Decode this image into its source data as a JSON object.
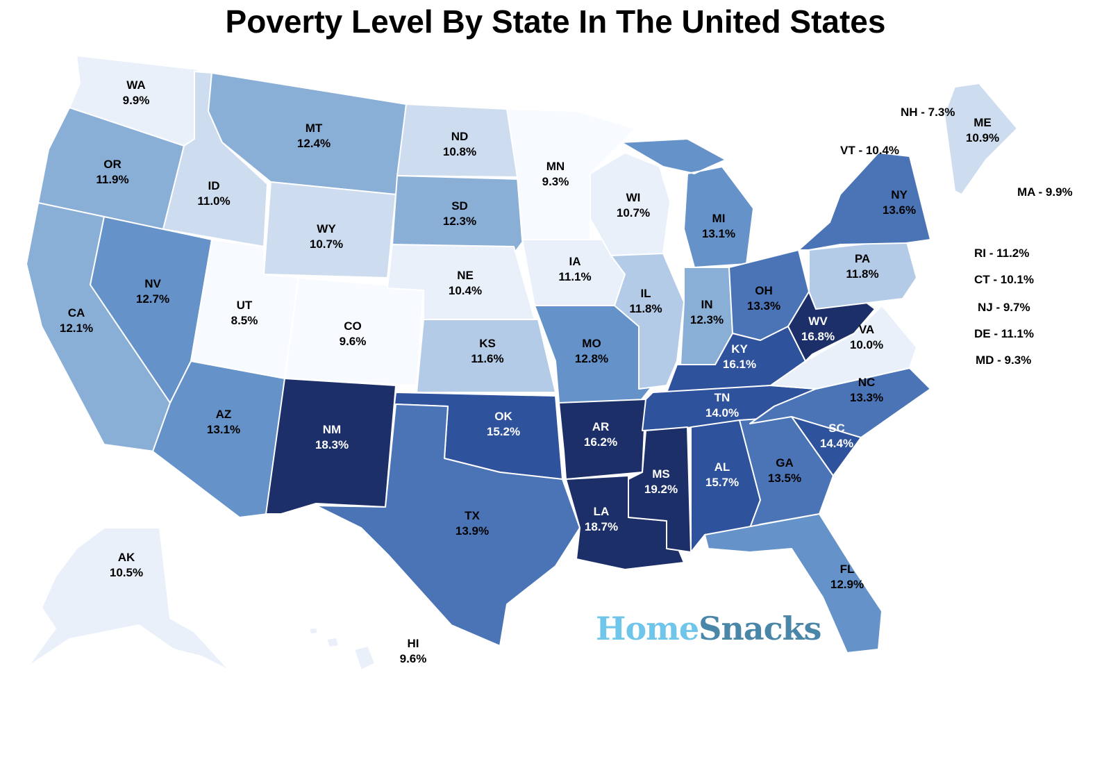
{
  "title": "Poverty Level By State In The United States",
  "brand": {
    "part1": "Home",
    "part2": "Snacks"
  },
  "colors": {
    "c1": "#f7faff",
    "c2": "#e9f0fa",
    "c3": "#cddcef",
    "c4": "#b3cbe6",
    "c5": "#8aafd7",
    "c6": "#6492c9",
    "c7": "#4a74b6",
    "c8": "#2f529c",
    "c9": "#1c2f68"
  },
  "states": [
    {
      "abbr": "WA",
      "value": "9.9%",
      "color": "c2"
    },
    {
      "abbr": "OR",
      "value": "11.9%",
      "color": "c5"
    },
    {
      "abbr": "CA",
      "value": "12.1%",
      "color": "c5"
    },
    {
      "abbr": "ID",
      "value": "11.0%",
      "color": "c3"
    },
    {
      "abbr": "NV",
      "value": "12.7%",
      "color": "c6"
    },
    {
      "abbr": "MT",
      "value": "12.4%",
      "color": "c5"
    },
    {
      "abbr": "WY",
      "value": "10.7%",
      "color": "c3"
    },
    {
      "abbr": "UT",
      "value": "8.5%",
      "color": "c1"
    },
    {
      "abbr": "CO",
      "value": "9.6%",
      "color": "c1"
    },
    {
      "abbr": "AZ",
      "value": "13.1%",
      "color": "c6"
    },
    {
      "abbr": "NM",
      "value": "18.3%",
      "color": "c9"
    },
    {
      "abbr": "ND",
      "value": "10.8%",
      "color": "c3"
    },
    {
      "abbr": "SD",
      "value": "12.3%",
      "color": "c5"
    },
    {
      "abbr": "NE",
      "value": "10.4%",
      "color": "c2"
    },
    {
      "abbr": "KS",
      "value": "11.6%",
      "color": "c4"
    },
    {
      "abbr": "OK",
      "value": "15.2%",
      "color": "c8"
    },
    {
      "abbr": "TX",
      "value": "13.9%",
      "color": "c7"
    },
    {
      "abbr": "MN",
      "value": "9.3%",
      "color": "c1"
    },
    {
      "abbr": "IA",
      "value": "11.1%",
      "color": "c2"
    },
    {
      "abbr": "MO",
      "value": "12.8%",
      "color": "c6"
    },
    {
      "abbr": "AR",
      "value": "16.2%",
      "color": "c9"
    },
    {
      "abbr": "LA",
      "value": "18.7%",
      "color": "c9"
    },
    {
      "abbr": "WI",
      "value": "10.7%",
      "color": "c2"
    },
    {
      "abbr": "IL",
      "value": "11.8%",
      "color": "c4"
    },
    {
      "abbr": "MI",
      "value": "13.1%",
      "color": "c6"
    },
    {
      "abbr": "IN",
      "value": "12.3%",
      "color": "c5"
    },
    {
      "abbr": "OH",
      "value": "13.3%",
      "color": "c7"
    },
    {
      "abbr": "KY",
      "value": "16.1%",
      "color": "c8"
    },
    {
      "abbr": "TN",
      "value": "14.0%",
      "color": "c8"
    },
    {
      "abbr": "MS",
      "value": "19.2%",
      "color": "c9"
    },
    {
      "abbr": "AL",
      "value": "15.7%",
      "color": "c8"
    },
    {
      "abbr": "GA",
      "value": "13.5%",
      "color": "c7"
    },
    {
      "abbr": "FL",
      "value": "12.9%",
      "color": "c6"
    },
    {
      "abbr": "SC",
      "value": "14.4%",
      "color": "c8"
    },
    {
      "abbr": "NC",
      "value": "13.3%",
      "color": "c7"
    },
    {
      "abbr": "VA",
      "value": "10.0%",
      "color": "c2"
    },
    {
      "abbr": "WV",
      "value": "16.8%",
      "color": "c9"
    },
    {
      "abbr": "PA",
      "value": "11.8%",
      "color": "c4"
    },
    {
      "abbr": "NY",
      "value": "13.6%",
      "color": "c7"
    },
    {
      "abbr": "ME",
      "value": "10.9%",
      "color": "c3"
    },
    {
      "abbr": "AK",
      "value": "10.5%",
      "color": "c2"
    },
    {
      "abbr": "HI",
      "value": "9.6%",
      "color": "c2"
    }
  ],
  "small_states": [
    {
      "abbr": "NH",
      "value": "7.3%",
      "text": "NH - 7.3%"
    },
    {
      "abbr": "VT",
      "value": "10.4%",
      "text": "VT - 10.4%"
    },
    {
      "abbr": "MA",
      "value": "9.9%",
      "text": "MA - 9.9%"
    },
    {
      "abbr": "RI",
      "value": "11.2%",
      "text": "RI - 11.2%"
    },
    {
      "abbr": "CT",
      "value": "10.1%",
      "text": "CT - 10.1%"
    },
    {
      "abbr": "NJ",
      "value": "9.7%",
      "text": "NJ - 9.7%"
    },
    {
      "abbr": "DE",
      "value": "11.1%",
      "text": "DE - 11.1%"
    },
    {
      "abbr": "MD",
      "value": "9.3%",
      "text": "MD - 9.3%"
    }
  ]
}
